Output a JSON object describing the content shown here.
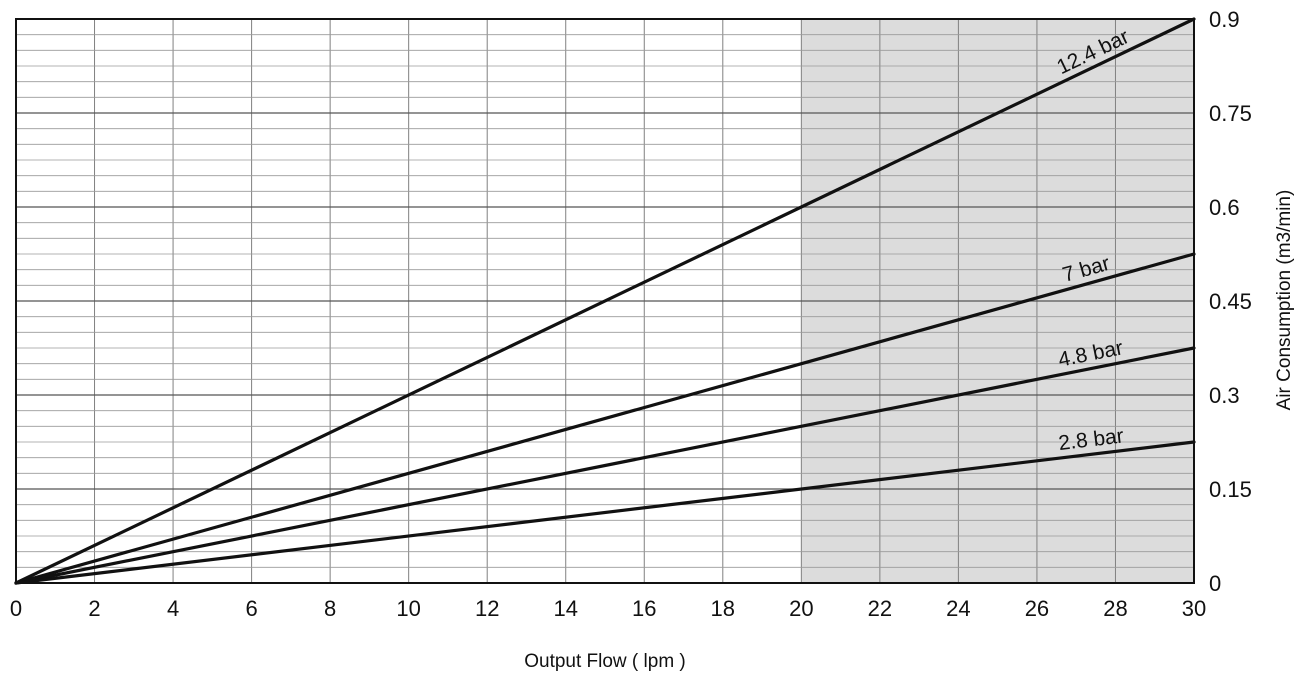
{
  "chart_data": {
    "type": "line",
    "title": "",
    "xlabel": "Output Flow ( lpm )",
    "ylabel": "Air Consumption (m3/min)",
    "xlim": [
      0,
      30
    ],
    "ylim": [
      0,
      0.9
    ],
    "x_ticks": [
      "0",
      "2",
      "4",
      "6",
      "8",
      "10",
      "12",
      "14",
      "16",
      "18",
      "20",
      "22",
      "24",
      "26",
      "28",
      "30"
    ],
    "y_ticks": [
      "0",
      "0.15",
      "0.3",
      "0.45",
      "0.6",
      "0.75",
      "0.9"
    ],
    "y_axis_position": "right",
    "grid": true,
    "shaded_region": {
      "x_from": 20,
      "x_to": 30,
      "color": "#dcdcdc"
    },
    "series": [
      {
        "name": "12.4 bar",
        "x": [
          0,
          30
        ],
        "y": [
          0,
          0.9
        ]
      },
      {
        "name": "7 bar",
        "x": [
          0,
          30
        ],
        "y": [
          0,
          0.525
        ]
      },
      {
        "name": "4.8 bar",
        "x": [
          0,
          30
        ],
        "y": [
          0,
          0.375
        ]
      },
      {
        "name": "2.8 bar",
        "x": [
          0,
          30
        ],
        "y": [
          0,
          0.225
        ]
      }
    ],
    "colors": {
      "line": "#111111",
      "grid": "#808080",
      "frame": "#111111"
    }
  }
}
